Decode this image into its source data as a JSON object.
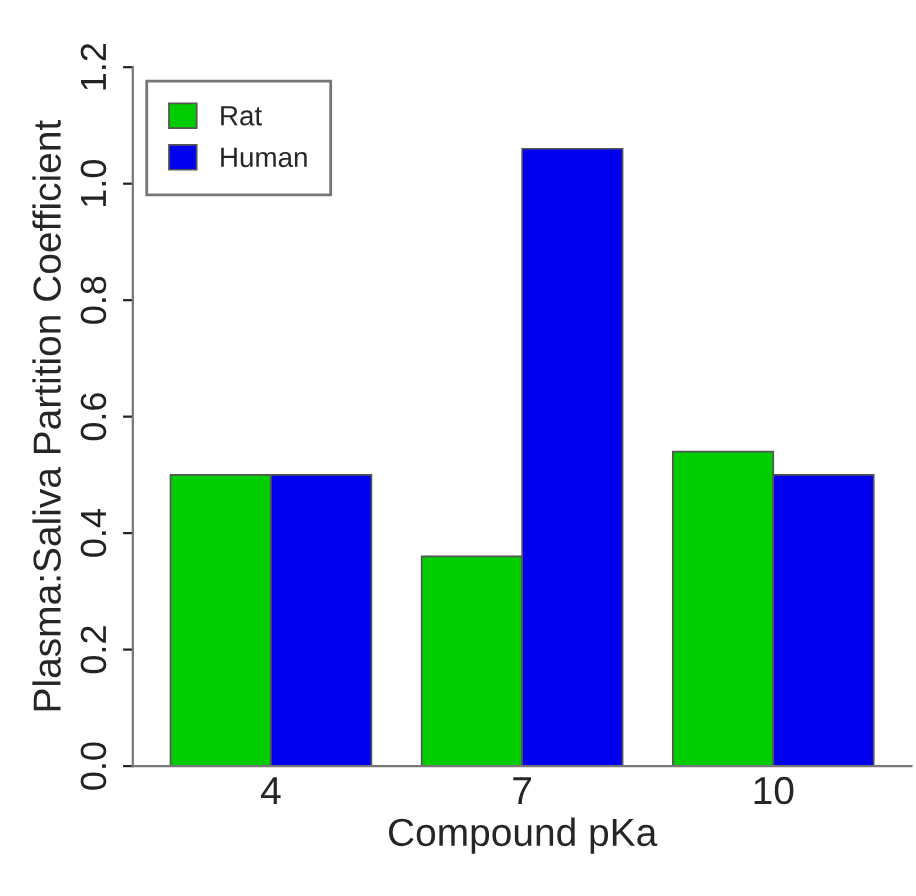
{
  "chart_data": {
    "type": "bar",
    "xlabel": "Compound pKa",
    "ylabel": "Plasma:Saliva Partition Coefficient",
    "categories": [
      "4",
      "7",
      "10"
    ],
    "series": [
      {
        "name": "Rat",
        "color": "#00cc00",
        "values": [
          0.5,
          0.36,
          0.54
        ]
      },
      {
        "name": "Human",
        "color": "#0000ee",
        "values": [
          0.5,
          1.06,
          0.5
        ]
      }
    ],
    "ylim": [
      0,
      1.2
    ],
    "yticks": [
      {
        "value": 0,
        "label": "0.0"
      },
      {
        "value": 0.2,
        "label": "0.2"
      },
      {
        "value": 0.4,
        "label": "0.4"
      },
      {
        "value": 0.6,
        "label": "0.6"
      },
      {
        "value": 0.8,
        "label": "0.8"
      },
      {
        "value": 1.0,
        "label": "1.0"
      },
      {
        "value": 1.2,
        "label": "1.2"
      }
    ],
    "legend": "top left",
    "grid": false
  }
}
